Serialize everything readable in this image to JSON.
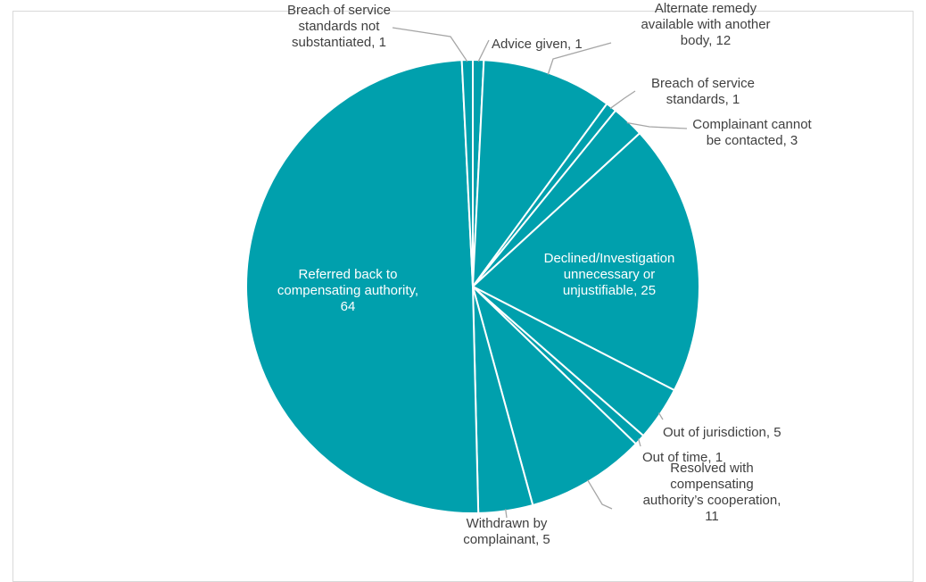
{
  "chart_data": {
    "type": "pie",
    "color": "#00A0AD",
    "slice_border": "#ffffff",
    "leader_color": "#a6a6a6",
    "slices": [
      {
        "label": "Advice given",
        "value": 1,
        "lines": [
          "Advice given, 1"
        ]
      },
      {
        "label": "Alternate remedy available with another body",
        "value": 12,
        "lines": [
          "Alternate remedy",
          "available with another",
          "body, 12"
        ]
      },
      {
        "label": "Breach of service standards",
        "value": 1,
        "lines": [
          "Breach of service",
          "standards, 1"
        ]
      },
      {
        "label": "Complainant cannot be contacted",
        "value": 3,
        "lines": [
          "Complainant cannot",
          "be contacted, 3"
        ]
      },
      {
        "label": "Declined/Investigation unnecessary or unjustifiable",
        "value": 25,
        "lines": [
          "Declined/Investigation",
          "unnecessary or",
          "unjustifiable, 25"
        ]
      },
      {
        "label": "Out of jurisdiction",
        "value": 5,
        "lines": [
          "Out of jurisdiction, 5"
        ]
      },
      {
        "label": "Out of time",
        "value": 1,
        "lines": [
          "Out of time, 1"
        ]
      },
      {
        "label": "Resolved with compensating authority’s cooperation",
        "value": 11,
        "lines": [
          "Resolved with",
          "compensating",
          "authority’s cooperation,",
          "11"
        ]
      },
      {
        "label": "Withdrawn by complainant",
        "value": 5,
        "lines": [
          "Withdrawn by",
          "complainant, 5"
        ]
      },
      {
        "label": "Referred back to compensating authority",
        "value": 64,
        "lines": [
          "Referred back to",
          "compensating authority,",
          "64"
        ]
      },
      {
        "label": "Breach of service standards not substantiated",
        "value": 1,
        "lines": [
          "Breach of service",
          "standards not",
          "substantiated, 1"
        ]
      }
    ]
  }
}
